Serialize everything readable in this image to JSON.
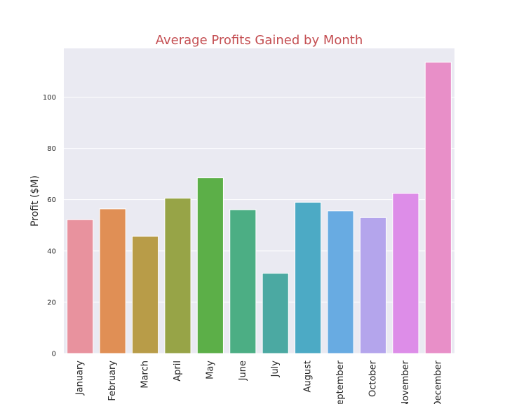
{
  "chart_data": {
    "type": "bar",
    "title": "Average Profits Gained by Month",
    "xlabel": "",
    "ylabel": "Profit ($M)",
    "ylim": [
      0,
      119
    ],
    "yticks": [
      0,
      20,
      40,
      60,
      80,
      100
    ],
    "grid": true,
    "categories": [
      "January",
      "February",
      "March",
      "April",
      "May",
      "June",
      "July",
      "August",
      "September",
      "October",
      "November",
      "December"
    ],
    "values": [
      52.2,
      56.4,
      45.7,
      60.6,
      68.5,
      56.1,
      31.3,
      59.0,
      55.6,
      53.0,
      62.5,
      113.6
    ],
    "colors": [
      "#e8929e",
      "#e08f55",
      "#b89c48",
      "#97a447",
      "#5caf48",
      "#4cae84",
      "#4ba9a2",
      "#4caac5",
      "#68abe2",
      "#b4a5ec",
      "#dd8de8",
      "#e88fc8"
    ]
  },
  "colors": {
    "plot_background": "#eaeaf2",
    "grid": "#ffffff",
    "title": "#c44e52"
  }
}
